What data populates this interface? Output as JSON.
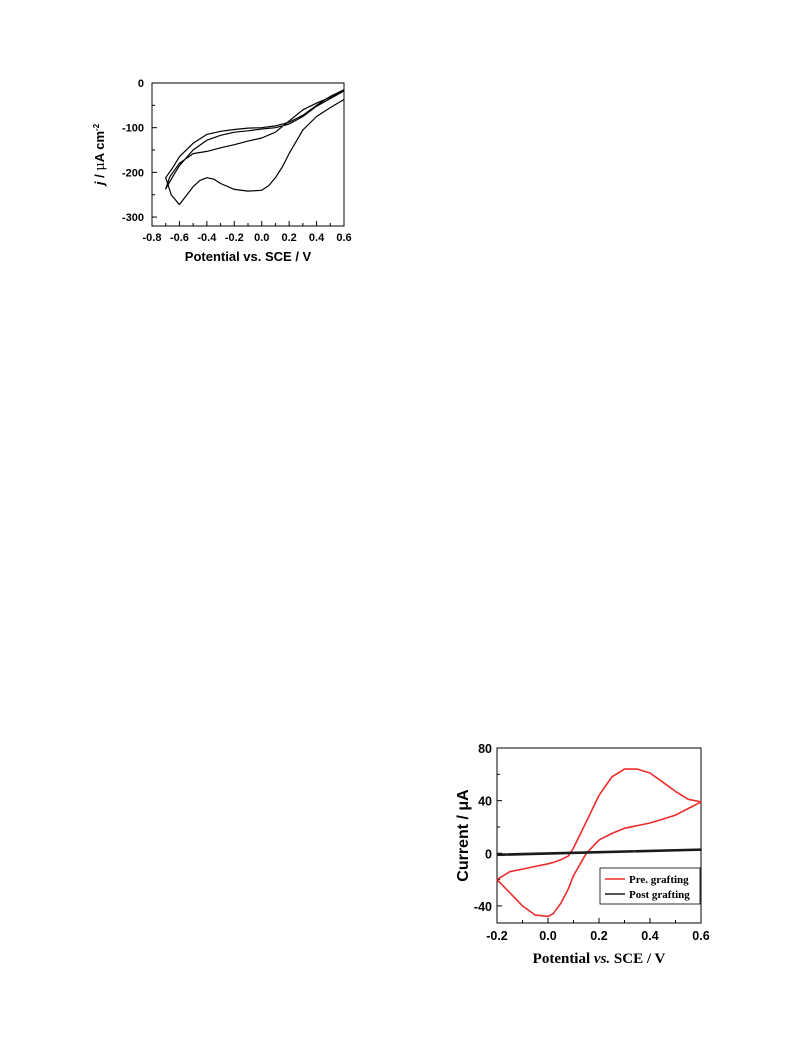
{
  "chart_data": [
    {
      "type": "line",
      "xlabel": "Potential vs. SCE / V",
      "ylabel_parts": [
        "j",
        " / ",
        "μ",
        "A cm",
        "-2"
      ],
      "xlim": [
        -0.8,
        0.6
      ],
      "ylim": [
        -320,
        0
      ],
      "xticks": [
        -0.8,
        -0.6,
        -0.4,
        -0.2,
        0.0,
        0.2,
        0.4,
        0.6
      ],
      "xtick_labels": [
        "-0.8",
        "-0.6",
        "-0.4",
        "-0.2",
        "0.0",
        "0.2",
        "0.4",
        "0.6"
      ],
      "yticks": [
        0,
        -100,
        -200,
        -300
      ],
      "ytick_labels": [
        "0",
        "-100",
        "-200",
        "-300"
      ],
      "grid": false,
      "series": [
        {
          "color": "#000000",
          "x": [
            0.6,
            0.5,
            0.4,
            0.3,
            0.2,
            0.1,
            0.0,
            -0.1,
            -0.2,
            -0.3,
            -0.4,
            -0.5,
            -0.6,
            -0.65,
            -0.7,
            -0.67,
            -0.6,
            -0.5,
            -0.4,
            -0.3,
            -0.2,
            -0.1,
            0.0,
            0.1,
            0.2,
            0.3,
            0.4,
            0.5,
            0.6
          ],
          "y": [
            -18,
            -35,
            -52,
            -75,
            -92,
            -100,
            -103,
            -107,
            -110,
            -117,
            -128,
            -150,
            -185,
            -210,
            -237,
            -210,
            -180,
            -158,
            -153,
            -145,
            -138,
            -130,
            -123,
            -110,
            -85,
            -60,
            -45,
            -32,
            -18
          ]
        },
        {
          "color": "#000000",
          "x": [
            0.6,
            0.5,
            0.4,
            0.3,
            0.2,
            0.1,
            0.0,
            -0.1,
            -0.2,
            -0.3,
            -0.4,
            -0.5,
            -0.6,
            -0.65,
            -0.7,
            -0.66,
            -0.6,
            -0.5,
            -0.45,
            -0.4,
            -0.35,
            -0.3,
            -0.2,
            -0.1,
            0.0,
            0.05,
            0.1,
            0.15,
            0.2,
            0.3,
            0.4,
            0.5,
            0.6
          ],
          "y": [
            -15,
            -30,
            -50,
            -72,
            -88,
            -96,
            -100,
            -101,
            -104,
            -108,
            -115,
            -135,
            -165,
            -190,
            -212,
            -250,
            -272,
            -232,
            -218,
            -212,
            -215,
            -225,
            -238,
            -242,
            -240,
            -230,
            -212,
            -188,
            -158,
            -105,
            -75,
            -55,
            -37
          ]
        }
      ]
    },
    {
      "type": "line",
      "xlabel_parts": [
        "Potential ",
        "vs.",
        " SCE / V"
      ],
      "ylabel": "Current / μA",
      "xlim": [
        -0.2,
        0.6
      ],
      "ylim": [
        -53,
        80
      ],
      "xticks": [
        -0.2,
        0.0,
        0.2,
        0.4,
        0.6
      ],
      "xtick_labels": [
        "-0.2",
        "0.0",
        "0.2",
        "0.4",
        "0.6"
      ],
      "yticks": [
        80,
        40,
        0,
        -40
      ],
      "ytick_labels": [
        "80",
        "40",
        "0",
        "-40"
      ],
      "grid": false,
      "legend_position": "bottom-right",
      "series": [
        {
          "name": "Pre. grafting",
          "color": "#ee2b2b",
          "x": [
            -0.2,
            -0.15,
            -0.1,
            -0.05,
            0.0,
            0.02,
            0.05,
            0.08,
            0.1,
            0.15,
            0.2,
            0.25,
            0.3,
            0.35,
            0.4,
            0.45,
            0.5,
            0.55,
            0.6,
            0.55,
            0.5,
            0.45,
            0.4,
            0.35,
            0.3,
            0.25,
            0.2,
            0.15,
            0.1,
            0.08,
            0.05,
            0.02,
            0.0,
            -0.05,
            -0.1,
            -0.15,
            -0.2
          ],
          "y": [
            -20,
            -30,
            -40,
            -47,
            -48,
            -46,
            -38,
            -27,
            -17,
            0,
            10,
            15,
            19,
            21,
            23,
            26,
            29,
            34,
            39,
            41,
            47,
            54,
            61,
            64,
            64,
            58,
            44,
            24,
            4,
            -2,
            -5,
            -7,
            -8,
            -10,
            -12,
            -14,
            -20
          ]
        },
        {
          "name": "Post grafting",
          "color": "#1a1a1a",
          "x": [
            -0.2,
            0.6,
            0.6,
            -0.2
          ],
          "y": [
            -1.5,
            2.5,
            3.0,
            -0.8
          ]
        }
      ]
    }
  ]
}
